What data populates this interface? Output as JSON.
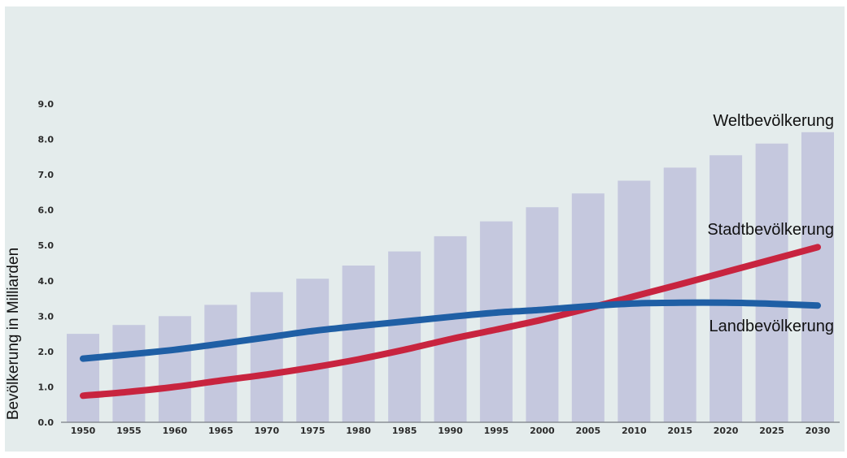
{
  "chart_data": {
    "type": "bar",
    "categories": [
      "1950",
      "1955",
      "1960",
      "1965",
      "1970",
      "1975",
      "1980",
      "1985",
      "1990",
      "1995",
      "2000",
      "2005",
      "2010",
      "2015",
      "2020",
      "2025",
      "2030"
    ],
    "ylabel": "Bevölkerung in Milliarden",
    "xlabel": "",
    "ylim": [
      0,
      9
    ],
    "yticks": [
      "0.0",
      "1.0",
      "2.0",
      "3.0",
      "4.0",
      "5.0",
      "6.0",
      "7.0",
      "8.0",
      "9.0"
    ],
    "grid": false,
    "series": [
      {
        "name": "Weltbevölkerung",
        "type": "bar",
        "color": "#c5c8de",
        "values": [
          2.5,
          2.75,
          3.0,
          3.32,
          3.68,
          4.06,
          4.43,
          4.83,
          5.26,
          5.68,
          6.08,
          6.47,
          6.83,
          7.2,
          7.55,
          7.88,
          8.2
        ]
      },
      {
        "name": "Stadtbevölkerung",
        "type": "line",
        "color": "#c8243f",
        "values": [
          0.75,
          0.86,
          1.0,
          1.18,
          1.35,
          1.55,
          1.78,
          2.05,
          2.35,
          2.62,
          2.9,
          3.22,
          3.56,
          3.9,
          4.25,
          4.6,
          4.95
        ]
      },
      {
        "name": "Landbevölkerung",
        "type": "line",
        "color": "#1f5fa5",
        "values": [
          1.8,
          1.92,
          2.05,
          2.22,
          2.4,
          2.58,
          2.72,
          2.85,
          2.98,
          3.1,
          3.18,
          3.28,
          3.36,
          3.38,
          3.38,
          3.35,
          3.3
        ]
      }
    ],
    "legend": "inline-right"
  },
  "colors": {
    "plot_background": "#e4ecec",
    "axis": "#8a8e95"
  }
}
